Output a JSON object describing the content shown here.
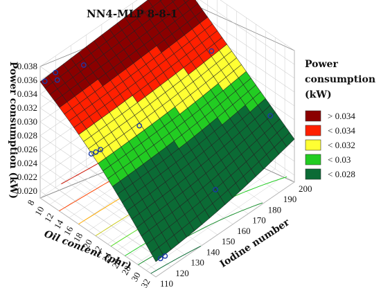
{
  "chart_data": {
    "type": "surface3d",
    "title": "NN4-MLP 8-8-1",
    "zlabel": "Power consumption (kW)",
    "xlabel": "Oil content (phr)",
    "ylabel": "Iodine number",
    "z_ticks": [
      "0.038",
      "0.036",
      "0.034",
      "0.032",
      "0.030",
      "0.028",
      "0.026",
      "0.024",
      "0.022",
      "0.020"
    ],
    "x_ticks": [
      "8",
      "10",
      "12",
      "14",
      "16",
      "18",
      "20",
      "22",
      "24",
      "26",
      "28",
      "30",
      "32"
    ],
    "y_ticks": [
      "110",
      "120",
      "130",
      "140",
      "150",
      "160",
      "170",
      "180",
      "190",
      "200"
    ],
    "xlim": [
      8,
      32
    ],
    "ylim": [
      110,
      200
    ],
    "zlim": [
      0.019,
      0.038
    ],
    "grid": true,
    "legend_position": "right",
    "legend": {
      "title_lines": [
        "Power",
        "consumption",
        "(kW)"
      ],
      "items": [
        {
          "label": "> 0.034",
          "color": "#8b0000"
        },
        {
          "label": "< 0.034",
          "color": "#ff2000"
        },
        {
          "label": "< 0.032",
          "color": "#ffff33"
        },
        {
          "label": "< 0.03",
          "color": "#22cc22"
        },
        {
          "label": "< 0.028",
          "color": "#0b6b35"
        }
      ]
    },
    "surface_corners": [
      {
        "oil": 8,
        "iodine": 110,
        "power": 0.0358
      },
      {
        "oil": 32,
        "iodine": 110,
        "power": 0.0212
      },
      {
        "oil": 8,
        "iodine": 200,
        "power": 0.0373
      },
      {
        "oil": 32,
        "iodine": 200,
        "power": 0.0252
      }
    ],
    "observed_points": [
      {
        "oil": 8,
        "iodine": 113,
        "power": 0.0354
      },
      {
        "oil": 8,
        "iodine": 120,
        "power": 0.0356
      },
      {
        "oil": 9,
        "iodine": 118,
        "power": 0.0353
      },
      {
        "oil": 10,
        "iodine": 132,
        "power": 0.0358
      },
      {
        "oil": 8,
        "iodine": 195,
        "power": 0.0373
      },
      {
        "oil": 17,
        "iodine": 115,
        "power": 0.0289
      },
      {
        "oil": 17,
        "iodine": 118,
        "power": 0.0287
      },
      {
        "oil": 17,
        "iodine": 121,
        "power": 0.0286
      },
      {
        "oil": 19,
        "iodine": 140,
        "power": 0.0301
      },
      {
        "oil": 18,
        "iodine": 190,
        "power": 0.0328
      },
      {
        "oil": 32,
        "iodine": 113,
        "power": 0.0212
      },
      {
        "oil": 32,
        "iodine": 116,
        "power": 0.0211
      },
      {
        "oil": 30,
        "iodine": 155,
        "power": 0.0238
      },
      {
        "oil": 27,
        "iodine": 200,
        "power": 0.0262
      }
    ]
  }
}
